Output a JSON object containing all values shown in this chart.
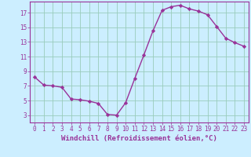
{
  "x": [
    0,
    1,
    2,
    3,
    4,
    5,
    6,
    7,
    8,
    9,
    10,
    11,
    12,
    13,
    14,
    15,
    16,
    17,
    18,
    19,
    20,
    21,
    22,
    23
  ],
  "y": [
    8.2,
    7.1,
    7.0,
    6.8,
    5.2,
    5.1,
    4.9,
    4.6,
    3.1,
    3.0,
    4.7,
    8.0,
    11.2,
    14.5,
    17.3,
    17.8,
    18.0,
    17.5,
    17.2,
    16.7,
    15.1,
    13.5,
    12.9,
    12.4
  ],
  "line_color": "#993399",
  "marker": "D",
  "marker_size": 2.2,
  "line_width": 1.0,
  "background_color": "#cceeff",
  "grid_color": "#99ccbb",
  "xlabel": "Windchill (Refroidissement éolien,°C)",
  "xlabel_fontsize": 6.5,
  "ylabel_ticks": [
    3,
    5,
    7,
    9,
    11,
    13,
    15,
    17
  ],
  "xlim": [
    -0.5,
    23.5
  ],
  "ylim": [
    2.0,
    18.5
  ],
  "xtick_labels": [
    "0",
    "1",
    "2",
    "3",
    "4",
    "5",
    "6",
    "7",
    "8",
    "9",
    "10",
    "11",
    "12",
    "13",
    "14",
    "15",
    "16",
    "17",
    "18",
    "19",
    "20",
    "21",
    "22",
    "23"
  ],
  "tick_fontsize": 5.5,
  "tick_color": "#993399",
  "label_color": "#993399"
}
